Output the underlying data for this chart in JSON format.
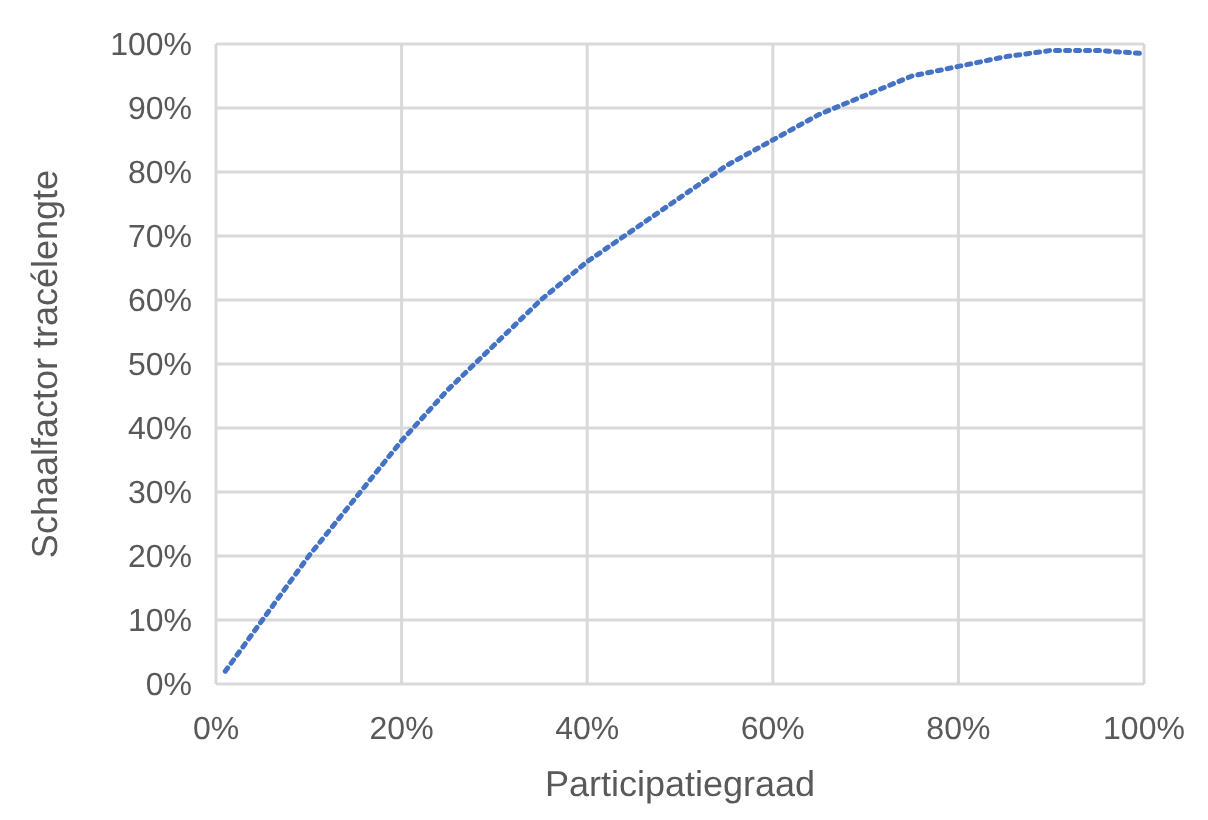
{
  "chart_data": {
    "type": "line",
    "xlabel": "Participatiegraad",
    "ylabel": "Schaalfactor tracélengte",
    "x": [
      1,
      5,
      10,
      15,
      20,
      25,
      30,
      35,
      40,
      45,
      50,
      55,
      60,
      65,
      70,
      75,
      80,
      85,
      90,
      95,
      100
    ],
    "series": [
      {
        "color": "#4472c4",
        "values": [
          2,
          10,
          20,
          29,
          38,
          46,
          53,
          60,
          66,
          71,
          76,
          81,
          85,
          89,
          92,
          95,
          96.5,
          98,
          99,
          99,
          98.5
        ]
      }
    ],
    "xlim": [
      0,
      100
    ],
    "ylim": [
      0,
      100
    ],
    "xticks": [
      {
        "value": 0,
        "label": "0%"
      },
      {
        "value": 20,
        "label": "20%"
      },
      {
        "value": 40,
        "label": "40%"
      },
      {
        "value": 60,
        "label": "60%"
      },
      {
        "value": 80,
        "label": "80%"
      },
      {
        "value": 100,
        "label": "100%"
      }
    ],
    "yticks": [
      {
        "value": 0,
        "label": "0%"
      },
      {
        "value": 10,
        "label": "10%"
      },
      {
        "value": 20,
        "label": "20%"
      },
      {
        "value": 30,
        "label": "30%"
      },
      {
        "value": 40,
        "label": "40%"
      },
      {
        "value": 50,
        "label": "50%"
      },
      {
        "value": 60,
        "label": "60%"
      },
      {
        "value": 70,
        "label": "70%"
      },
      {
        "value": 80,
        "label": "80%"
      },
      {
        "value": 90,
        "label": "90%"
      },
      {
        "value": 100,
        "label": "100%"
      }
    ],
    "grid": true,
    "marker": "none",
    "line_style": "dotted",
    "legend": false
  }
}
